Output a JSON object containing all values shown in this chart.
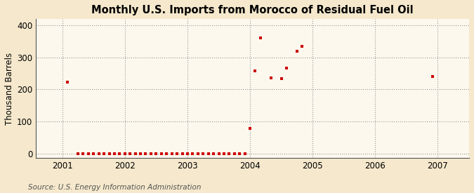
{
  "title": "Monthly U.S. Imports from Morocco of Residual Fuel Oil",
  "ylabel": "Thousand Barrels",
  "source": "Source: U.S. Energy Information Administration",
  "background_color": "#f5e8cc",
  "plot_background_color": "#fdf8ee",
  "marker_color": "#cc0000",
  "xlim_start": 2000.58,
  "xlim_end": 2007.5,
  "ylim": [
    -15,
    420
  ],
  "yticks": [
    0,
    100,
    200,
    300,
    400
  ],
  "xticks": [
    2001,
    2002,
    2003,
    2004,
    2005,
    2006,
    2007
  ],
  "data_points": [
    {
      "date": 2001.083,
      "value": 224
    },
    {
      "date": 2001.25,
      "value": 0
    },
    {
      "date": 2001.333,
      "value": 0
    },
    {
      "date": 2001.417,
      "value": 0
    },
    {
      "date": 2001.5,
      "value": 0
    },
    {
      "date": 2001.583,
      "value": 0
    },
    {
      "date": 2001.667,
      "value": 0
    },
    {
      "date": 2001.75,
      "value": 0
    },
    {
      "date": 2001.833,
      "value": 0
    },
    {
      "date": 2001.917,
      "value": 0
    },
    {
      "date": 2002.0,
      "value": 0
    },
    {
      "date": 2002.083,
      "value": 0
    },
    {
      "date": 2002.167,
      "value": 0
    },
    {
      "date": 2002.25,
      "value": 0
    },
    {
      "date": 2002.333,
      "value": 0
    },
    {
      "date": 2002.417,
      "value": 0
    },
    {
      "date": 2002.5,
      "value": 0
    },
    {
      "date": 2002.583,
      "value": 0
    },
    {
      "date": 2002.667,
      "value": 0
    },
    {
      "date": 2002.75,
      "value": 0
    },
    {
      "date": 2002.833,
      "value": 0
    },
    {
      "date": 2002.917,
      "value": 0
    },
    {
      "date": 2003.0,
      "value": 0
    },
    {
      "date": 2003.083,
      "value": 0
    },
    {
      "date": 2003.167,
      "value": 0
    },
    {
      "date": 2003.25,
      "value": 0
    },
    {
      "date": 2003.333,
      "value": 0
    },
    {
      "date": 2003.417,
      "value": 0
    },
    {
      "date": 2003.5,
      "value": 0
    },
    {
      "date": 2003.583,
      "value": 0
    },
    {
      "date": 2003.667,
      "value": 0
    },
    {
      "date": 2003.75,
      "value": 0
    },
    {
      "date": 2003.833,
      "value": 0
    },
    {
      "date": 2003.917,
      "value": 0
    },
    {
      "date": 2004.0,
      "value": 78
    },
    {
      "date": 2004.083,
      "value": 258
    },
    {
      "date": 2004.167,
      "value": 362
    },
    {
      "date": 2004.333,
      "value": 236
    },
    {
      "date": 2004.5,
      "value": 234
    },
    {
      "date": 2004.583,
      "value": 268
    },
    {
      "date": 2004.75,
      "value": 320
    },
    {
      "date": 2004.833,
      "value": 335
    },
    {
      "date": 2006.917,
      "value": 240
    }
  ]
}
